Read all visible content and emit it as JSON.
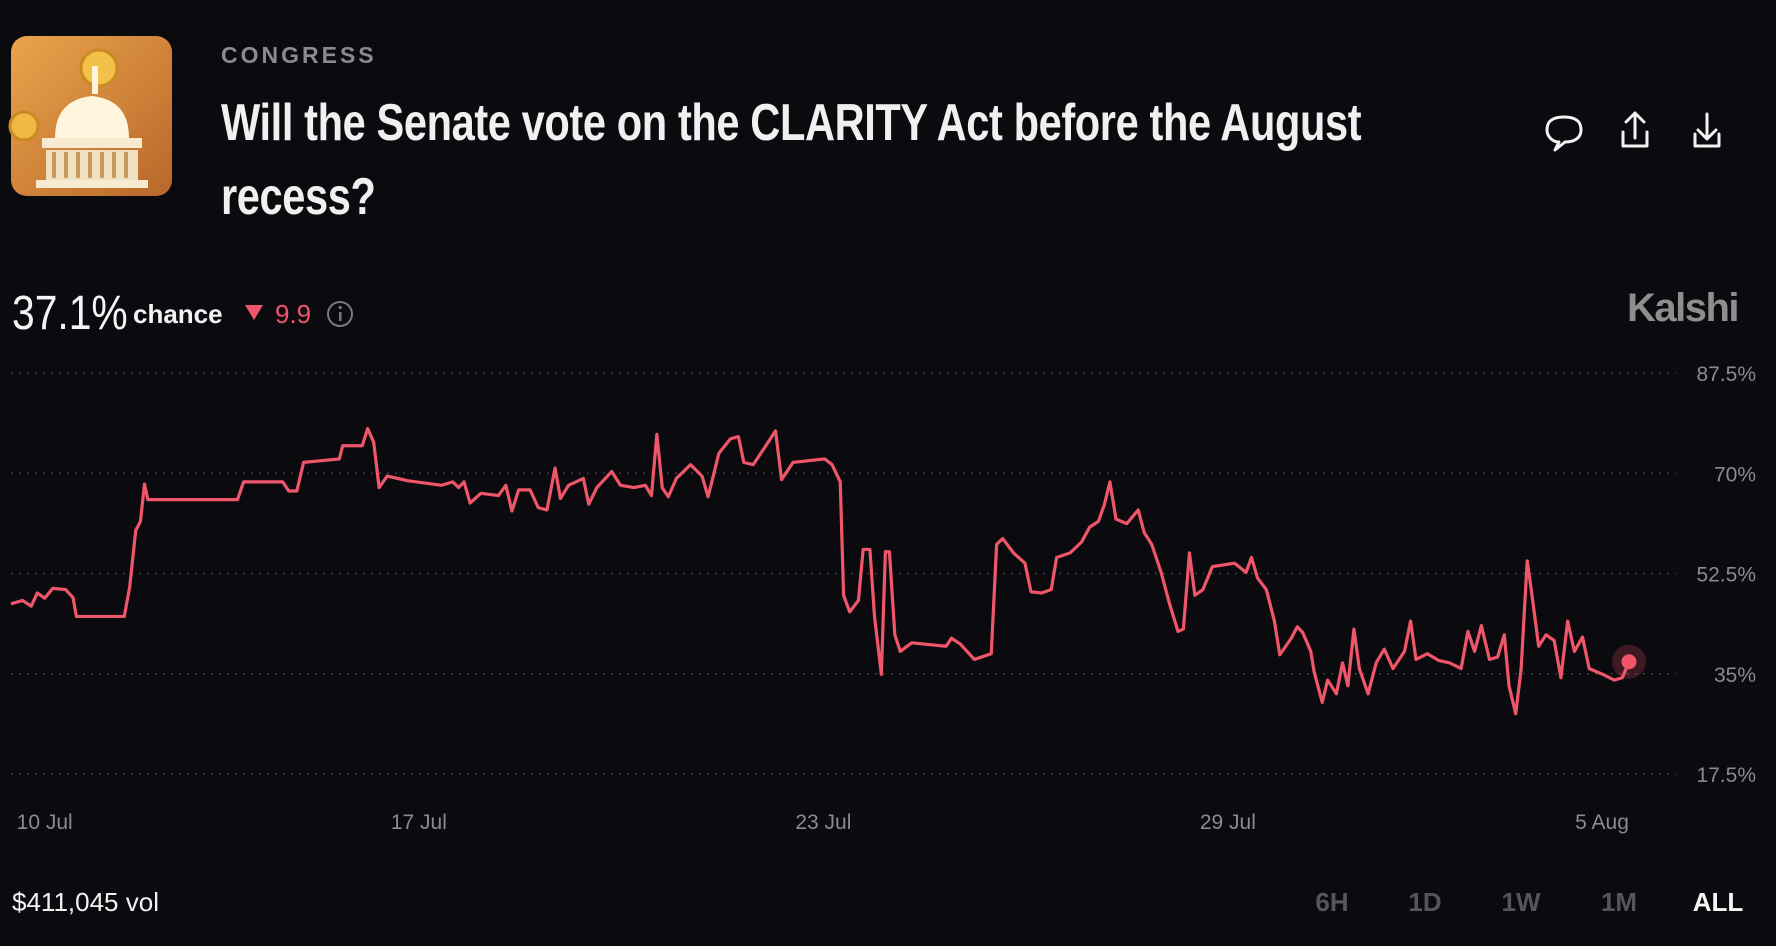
{
  "header": {
    "category": "CONGRESS",
    "title": "Will the Senate vote on the CLARITY Act before the August recess?"
  },
  "summary": {
    "probability": "37.1%",
    "probability_label": "chance",
    "change": "9.9",
    "brand": "Kalshi"
  },
  "chart_data": {
    "type": "line",
    "color": "#f0566a",
    "grid": true,
    "xlim": [
      0,
      24
    ],
    "ylim": [
      17.5,
      87.5
    ],
    "xticks": [
      {
        "value": 0.5,
        "label": "10 Jul"
      },
      {
        "value": 6.05,
        "label": "17 Jul"
      },
      {
        "value": 12.05,
        "label": "23 Jul"
      },
      {
        "value": 18.05,
        "label": "29 Jul"
      },
      {
        "value": 23.6,
        "label": "5 Aug"
      }
    ],
    "yticks": [
      {
        "value": 17.5,
        "label": "17.5%"
      },
      {
        "value": 35,
        "label": "35%"
      },
      {
        "value": 52.5,
        "label": "52.5%"
      },
      {
        "value": 70,
        "label": "70%"
      },
      {
        "value": 87.5,
        "label": "87.5%"
      }
    ],
    "x": [
      0,
      0.17,
      0.3,
      0.39,
      0.5,
      0.62,
      0.81,
      0.92,
      0.97,
      1.68,
      1.76,
      1.85,
      1.92,
      1.98,
      2.03,
      3.36,
      3.45,
      4.03,
      4.12,
      4.24,
      4.34,
      4.87,
      4.92,
      5.21,
      5.29,
      5.38,
      5.46,
      5.58,
      5.88,
      6.39,
      6.55,
      6.64,
      6.72,
      6.81,
      6.97,
      7.23,
      7.34,
      7.43,
      7.53,
      7.7,
      7.82,
      7.95,
      8.07,
      8.15,
      8.27,
      8.49,
      8.57,
      8.69,
      8.91,
      9.04,
      9.24,
      9.41,
      9.5,
      9.58,
      9.66,
      9.75,
      9.87,
      10.08,
      10.25,
      10.34,
      10.5,
      10.67,
      10.79,
      10.87,
      11.01,
      11.18,
      11.34,
      11.43,
      11.6,
      12.07,
      12.18,
      12.3,
      12.35,
      12.44,
      12.57,
      12.64,
      12.74,
      12.81,
      12.91,
      12.97,
      13.03,
      13.11,
      13.19,
      13.36,
      13.87,
      13.95,
      14.08,
      14.29,
      14.54,
      14.62,
      14.71,
      14.87,
      15.04,
      15.13,
      15.29,
      15.43,
      15.51,
      15.71,
      15.88,
      16.0,
      16.13,
      16.22,
      16.3,
      16.39,
      16.55,
      16.72,
      16.81,
      16.92,
      17.06,
      17.18,
      17.31,
      17.39,
      17.48,
      17.56,
      17.68,
      17.82,
      18.15,
      18.32,
      18.4,
      18.49,
      18.62,
      18.74,
      18.82,
      18.99,
      19.08,
      19.16,
      19.28,
      19.33,
      19.45,
      19.53,
      19.66,
      19.75,
      19.83,
      19.92,
      20.0,
      20.13,
      20.25,
      20.37,
      20.5,
      20.67,
      20.76,
      20.84,
      21.01,
      21.18,
      21.34,
      21.51,
      21.61,
      21.71,
      21.81,
      21.93,
      22.05,
      22.15,
      22.22,
      22.32,
      22.4,
      22.49,
      22.55,
      22.66,
      22.77,
      22.89,
      22.99,
      23.09,
      23.19,
      23.31,
      23.41,
      23.61,
      23.78,
      23.9,
      24.0
    ],
    "values": [
      47.2,
      47.8,
      46.8,
      49.1,
      48.2,
      49.9,
      49.7,
      48.3,
      45.0,
      45.0,
      50.1,
      60.0,
      61.6,
      68.1,
      65.4,
      65.4,
      68.5,
      68.5,
      66.9,
      66.9,
      71.9,
      72.5,
      74.8,
      74.8,
      77.8,
      75.4,
      67.5,
      69.5,
      68.7,
      67.9,
      68.5,
      67.5,
      68.5,
      64.8,
      66.5,
      66.1,
      67.9,
      63.4,
      67.1,
      67.1,
      64.0,
      63.6,
      70.9,
      65.6,
      67.9,
      69.1,
      64.6,
      67.5,
      70.3,
      67.9,
      67.5,
      67.9,
      66.1,
      76.8,
      67.5,
      65.9,
      69.1,
      71.5,
      69.5,
      65.9,
      73.5,
      76.0,
      76.4,
      71.9,
      71.5,
      74.5,
      77.4,
      68.9,
      71.9,
      72.5,
      71.5,
      68.5,
      48.7,
      45.8,
      47.8,
      56.7,
      56.7,
      44.8,
      34.9,
      56.3,
      56.3,
      41.8,
      38.9,
      40.4,
      39.8,
      41.2,
      40.2,
      37.5,
      38.5,
      57.6,
      58.6,
      56.1,
      54.3,
      49.3,
      49.1,
      49.7,
      55.3,
      56.1,
      58.0,
      60.6,
      61.6,
      64.6,
      68.5,
      62.0,
      61.2,
      63.6,
      59.6,
      57.6,
      52.7,
      47.4,
      42.4,
      42.8,
      56.1,
      48.7,
      49.7,
      53.7,
      54.3,
      52.7,
      55.3,
      51.7,
      49.7,
      44.2,
      38.3,
      41.2,
      43.2,
      42.2,
      38.9,
      35.3,
      30.0,
      33.9,
      31.5,
      36.9,
      32.9,
      42.8,
      35.9,
      31.5,
      36.9,
      39.3,
      35.9,
      38.9,
      44.2,
      37.5,
      38.5,
      37.3,
      36.9,
      35.9,
      42.4,
      38.9,
      43.4,
      37.5,
      37.9,
      41.8,
      32.9,
      28.0,
      35.9,
      54.7,
      49.7,
      39.8,
      41.8,
      40.8,
      34.3,
      44.2,
      38.9,
      41.4,
      35.9,
      34.9,
      33.9,
      34.3,
      37.1
    ]
  },
  "footer": {
    "volume": "$411,045 vol",
    "ranges": [
      "6H",
      "1D",
      "1W",
      "1M",
      "ALL"
    ],
    "active_range": "ALL"
  }
}
